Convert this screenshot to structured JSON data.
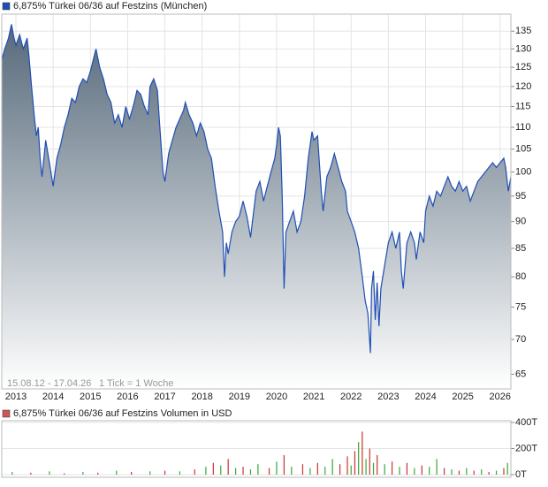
{
  "chart_data": [
    {
      "type": "area",
      "log_y": true,
      "grid": true,
      "annotations": [
        "15.08.12 - 17.04.26",
        "1 Tick = 1 Woche"
      ],
      "series": [
        {
          "name": "6,875% Türkei 06/36 auf Festzins (München)",
          "color": "#1f4fb4",
          "x": [
            2012.62,
            2012.7,
            2012.8,
            2012.88,
            2012.95,
            2013.0,
            2013.1,
            2013.2,
            2013.3,
            2013.35,
            2013.42,
            2013.5,
            2013.55,
            2013.6,
            2013.65,
            2013.7,
            2013.8,
            2013.9,
            2014.0,
            2014.1,
            2014.2,
            2014.3,
            2014.4,
            2014.5,
            2014.6,
            2014.7,
            2014.8,
            2014.9,
            2015.0,
            2015.1,
            2015.15,
            2015.25,
            2015.35,
            2015.45,
            2015.55,
            2015.65,
            2015.75,
            2015.85,
            2015.95,
            2016.05,
            2016.15,
            2016.25,
            2016.35,
            2016.45,
            2016.55,
            2016.6,
            2016.7,
            2016.8,
            2016.85,
            2016.95,
            2017.0,
            2017.1,
            2017.2,
            2017.3,
            2017.4,
            2017.5,
            2017.55,
            2017.65,
            2017.75,
            2017.85,
            2017.95,
            2018.05,
            2018.15,
            2018.25,
            2018.35,
            2018.45,
            2018.55,
            2018.6,
            2018.65,
            2018.7,
            2018.8,
            2018.9,
            2019.0,
            2019.1,
            2019.2,
            2019.3,
            2019.35,
            2019.45,
            2019.55,
            2019.65,
            2019.75,
            2019.85,
            2019.95,
            2020.0,
            2020.05,
            2020.1,
            2020.15,
            2020.2,
            2020.25,
            2020.35,
            2020.45,
            2020.55,
            2020.65,
            2020.75,
            2020.85,
            2020.95,
            2021.0,
            2021.1,
            2021.2,
            2021.25,
            2021.35,
            2021.45,
            2021.55,
            2021.65,
            2021.75,
            2021.85,
            2021.9,
            2022.0,
            2022.1,
            2022.2,
            2022.3,
            2022.38,
            2022.45,
            2022.52,
            2022.55,
            2022.6,
            2022.65,
            2022.7,
            2022.75,
            2022.8,
            2022.9,
            2023.0,
            2023.1,
            2023.2,
            2023.3,
            2023.35,
            2023.4,
            2023.5,
            2023.6,
            2023.7,
            2023.75,
            2023.85,
            2023.95,
            2024.0,
            2024.1,
            2024.2,
            2024.3,
            2024.4,
            2024.5,
            2024.6,
            2024.7,
            2024.8,
            2024.9,
            2025.0,
            2025.1,
            2025.2,
            2025.3,
            2025.4,
            2025.5,
            2025.6,
            2025.7,
            2025.8,
            2025.9,
            2026.0,
            2026.1,
            2026.15,
            2026.22,
            2026.29
          ],
          "values": [
            127,
            130,
            133,
            137,
            133,
            131,
            134,
            130,
            133,
            128,
            120,
            112,
            108,
            110,
            103,
            99,
            107,
            102,
            97,
            103,
            106,
            110,
            113,
            117,
            116,
            120,
            122,
            121,
            124,
            128,
            130,
            125,
            122,
            118,
            116,
            111,
            113,
            110,
            115,
            112,
            115,
            119,
            118,
            115,
            113,
            120,
            122,
            119,
            112,
            100,
            98,
            104,
            107,
            110,
            112,
            114,
            116,
            113,
            111,
            108,
            111,
            109,
            105,
            103,
            97,
            92,
            88,
            80,
            86,
            84,
            88,
            90,
            91,
            94,
            91,
            87,
            90,
            96,
            98,
            94,
            97,
            100,
            103,
            106,
            110,
            108,
            95,
            78,
            88,
            90,
            92,
            88,
            90,
            95,
            103,
            109,
            107,
            108,
            96,
            92,
            99,
            101,
            104,
            101,
            98,
            96,
            92,
            90,
            88,
            85,
            80,
            76,
            74,
            68,
            78,
            81,
            73,
            79,
            72,
            78,
            82,
            86,
            88,
            85,
            88,
            81,
            78,
            86,
            88,
            86,
            83,
            88,
            86,
            92,
            95,
            93,
            96,
            95,
            97,
            99,
            97,
            96,
            98,
            96,
            97,
            94,
            96,
            98,
            99,
            100,
            101,
            102,
            101,
            102,
            103,
            101,
            96,
            99
          ]
        }
      ],
      "xlim": [
        2012.62,
        2026.29
      ],
      "xticks": [
        2013,
        2014,
        2015,
        2016,
        2017,
        2018,
        2019,
        2020,
        2021,
        2022,
        2023,
        2024,
        2025,
        2026
      ],
      "ylim": [
        63,
        140
      ],
      "yticks": [
        65,
        70,
        75,
        80,
        85,
        90,
        95,
        100,
        105,
        110,
        115,
        120,
        125,
        130,
        135
      ]
    },
    {
      "type": "bar",
      "series": [
        {
          "name": "6,875% Türkei 06/36 auf Festzins Volumen in USD",
          "x": [
            2012.9,
            2013.4,
            2013.9,
            2014.3,
            2014.8,
            2015.2,
            2015.7,
            2016.1,
            2016.6,
            2017.0,
            2017.4,
            2017.8,
            2018.1,
            2018.3,
            2018.5,
            2018.7,
            2018.9,
            2019.1,
            2019.3,
            2019.5,
            2019.8,
            2020.0,
            2020.2,
            2020.4,
            2020.7,
            2020.9,
            2021.1,
            2021.3,
            2021.5,
            2021.7,
            2021.9,
            2022.0,
            2022.1,
            2022.2,
            2022.3,
            2022.4,
            2022.5,
            2022.6,
            2022.7,
            2022.9,
            2023.1,
            2023.3,
            2023.5,
            2023.7,
            2023.9,
            2024.1,
            2024.3,
            2024.5,
            2024.7,
            2024.9,
            2025.1,
            2025.3,
            2025.5,
            2025.7,
            2025.9,
            2026.1,
            2026.2
          ],
          "values": [
            20000,
            15000,
            25000,
            10000,
            20000,
            15000,
            30000,
            20000,
            25000,
            30000,
            25000,
            40000,
            60000,
            90000,
            70000,
            120000,
            50000,
            60000,
            40000,
            80000,
            50000,
            100000,
            150000,
            60000,
            80000,
            50000,
            90000,
            60000,
            120000,
            80000,
            140000,
            70000,
            180000,
            250000,
            330000,
            120000,
            200000,
            90000,
            150000,
            80000,
            100000,
            60000,
            90000,
            50000,
            70000,
            60000,
            120000,
            50000,
            40000,
            30000,
            50000,
            30000,
            40000,
            20000,
            30000,
            50000,
            90000
          ],
          "colors": [
            "#33aa33",
            "#cc3333",
            "#33aa33",
            "#cc3333",
            "#33aa33",
            "#cc3333",
            "#33aa33",
            "#cc3333",
            "#33aa33",
            "#cc3333",
            "#33aa33",
            "#cc3333",
            "#33aa33",
            "#cc3333",
            "#33aa33",
            "#cc3333",
            "#33aa33",
            "#cc3333",
            "#33aa33",
            "#33aa33",
            "#cc3333",
            "#33aa33",
            "#cc3333",
            "#33aa33",
            "#cc3333",
            "#33aa33",
            "#cc3333",
            "#33aa33",
            "#33aa33",
            "#cc3333",
            "#cc3333",
            "#33aa33",
            "#cc3333",
            "#33aa33",
            "#cc3333",
            "#33aa33",
            "#cc3333",
            "#33aa33",
            "#cc3333",
            "#33aa33",
            "#cc3333",
            "#33aa33",
            "#cc3333",
            "#33aa33",
            "#cc3333",
            "#33aa33",
            "#33aa33",
            "#cc3333",
            "#33aa33",
            "#cc3333",
            "#33aa33",
            "#cc3333",
            "#33aa33",
            "#cc3333",
            "#33aa33",
            "#cc3333",
            "#33aa33"
          ]
        }
      ],
      "xlim": [
        2012.62,
        2026.29
      ],
      "ylim": [
        0,
        400000
      ],
      "yticks": [
        {
          "value": 0,
          "label": "0T"
        },
        {
          "value": 200000,
          "label": "200T"
        },
        {
          "value": 400000,
          "label": "400T"
        }
      ]
    }
  ]
}
